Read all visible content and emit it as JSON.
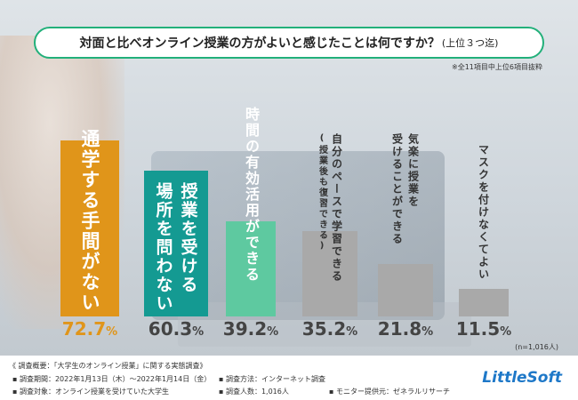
{
  "title": "対面と比べオンライン授業の方がよいと感じたことは何ですか？",
  "title_suffix": "(上位３つ迄)",
  "note": "※全11項目中上位6項目抜粋",
  "sample": "(n=1,016人)",
  "colors": {
    "bar1": "#e0951a",
    "bar2": "#149a92",
    "bar3": "#5ec9a0",
    "bar_gray": "#a9a9a9",
    "accent_border": "#22b07a"
  },
  "chart_data": {
    "type": "bar",
    "title": "対面と比べオンライン授業の方がよいと感じたことは何ですか？(上位３つ迄)",
    "categories": [
      "通学する手間がない",
      "授業を受ける場所を問わない",
      "時間の有効活用ができる",
      "自分のペースで学習できる(授業後も復習できる)",
      "気楽に授業を受けることができる",
      "マスクを付けなくてよい"
    ],
    "values": [
      72.7,
      60.3,
      39.2,
      35.2,
      21.8,
      11.5
    ],
    "ylim": [
      0,
      100
    ],
    "unit": "%",
    "labels": [
      {
        "lines": [
          "通学する手間がない"
        ]
      },
      {
        "lines": [
          "授業を受ける",
          "場所を問わない"
        ]
      },
      {
        "lines": [
          "時間の有効活用ができる"
        ]
      },
      {
        "lines": [
          "自分のペースで学習できる"
        ],
        "sub": "(授業後も復習できる)"
      },
      {
        "lines": [
          "気楽に授業を",
          "受けることができる"
        ]
      },
      {
        "lines": [
          "マスクを付けなくてよい"
        ]
      }
    ],
    "value_labels": [
      {
        "big": "72.7",
        "sm": "%"
      },
      {
        "big": "60.3",
        "sm": "%"
      },
      {
        "big": "39.2",
        "sm": "%"
      },
      {
        "big": "35.2",
        "sm": "%"
      },
      {
        "big": "21.8",
        "sm": "%"
      },
      {
        "big": "11.5",
        "sm": "%"
      }
    ]
  },
  "footer": {
    "survey_title": "《 調査概要：「大学生のオンライン授業」に関する実態調査》",
    "period": "▪ 調査期間：2022年1月13日（木）～2022年1月14日（金）",
    "target": "▪ 調査対象：オンライン授業を受けていた大学生",
    "method": "▪ 調査方法：インターネット調査",
    "count": "▪ 調査人数：1,016人",
    "provider": "▪ モニター提供元：ゼネラルリサーチ",
    "logo": "LittleSoft"
  }
}
